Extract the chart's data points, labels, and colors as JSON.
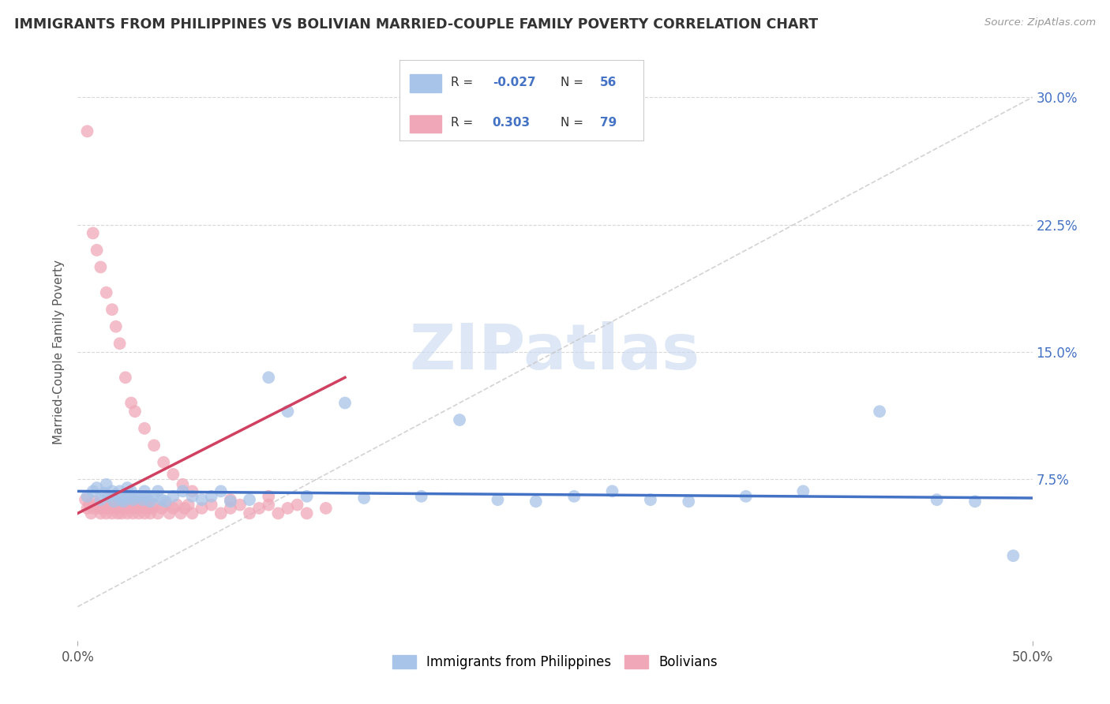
{
  "title": "IMMIGRANTS FROM PHILIPPINES VS BOLIVIAN MARRIED-COUPLE FAMILY POVERTY CORRELATION CHART",
  "source": "Source: ZipAtlas.com",
  "ylabel": "Married-Couple Family Poverty",
  "yticks": [
    "7.5%",
    "15.0%",
    "22.5%",
    "30.0%"
  ],
  "ytick_vals": [
    0.075,
    0.15,
    0.225,
    0.3
  ],
  "xlim": [
    0.0,
    0.5
  ],
  "ylim": [
    -0.02,
    0.32
  ],
  "blue_color": "#a8c4e8",
  "pink_color": "#f0a8b8",
  "trend_blue": "#4472c4",
  "trend_pink": "#d04060",
  "grid_color": "#d8d8d8",
  "watermark_color": "#c8d8f0",
  "watermark": "ZIPatlas",
  "background_color": "#ffffff",
  "phil_x": [
    0.005,
    0.008,
    0.01,
    0.012,
    0.014,
    0.015,
    0.016,
    0.018,
    0.019,
    0.02,
    0.021,
    0.022,
    0.023,
    0.024,
    0.025,
    0.026,
    0.027,
    0.028,
    0.029,
    0.03,
    0.032,
    0.034,
    0.035,
    0.036,
    0.038,
    0.04,
    0.042,
    0.044,
    0.046,
    0.05,
    0.055,
    0.06,
    0.065,
    0.07,
    0.075,
    0.08,
    0.09,
    0.1,
    0.11,
    0.12,
    0.14,
    0.15,
    0.18,
    0.2,
    0.22,
    0.24,
    0.26,
    0.28,
    0.3,
    0.32,
    0.35,
    0.38,
    0.42,
    0.45,
    0.47,
    0.49
  ],
  "phil_y": [
    0.065,
    0.068,
    0.07,
    0.063,
    0.067,
    0.072,
    0.065,
    0.068,
    0.062,
    0.066,
    0.065,
    0.068,
    0.063,
    0.062,
    0.065,
    0.07,
    0.064,
    0.068,
    0.063,
    0.065,
    0.065,
    0.063,
    0.068,
    0.065,
    0.062,
    0.065,
    0.068,
    0.063,
    0.062,
    0.065,
    0.068,
    0.065,
    0.063,
    0.065,
    0.068,
    0.062,
    0.063,
    0.135,
    0.115,
    0.065,
    0.12,
    0.064,
    0.065,
    0.11,
    0.063,
    0.062,
    0.065,
    0.068,
    0.063,
    0.062,
    0.065,
    0.068,
    0.115,
    0.063,
    0.062,
    0.03
  ],
  "boliv_x": [
    0.004,
    0.005,
    0.006,
    0.007,
    0.008,
    0.009,
    0.01,
    0.011,
    0.012,
    0.013,
    0.014,
    0.015,
    0.016,
    0.017,
    0.018,
    0.019,
    0.02,
    0.021,
    0.022,
    0.023,
    0.024,
    0.025,
    0.026,
    0.027,
    0.028,
    0.029,
    0.03,
    0.031,
    0.032,
    0.033,
    0.034,
    0.035,
    0.036,
    0.037,
    0.038,
    0.039,
    0.04,
    0.042,
    0.044,
    0.046,
    0.048,
    0.05,
    0.052,
    0.054,
    0.056,
    0.058,
    0.06,
    0.065,
    0.07,
    0.075,
    0.08,
    0.085,
    0.09,
    0.095,
    0.1,
    0.105,
    0.11,
    0.115,
    0.12,
    0.13,
    0.005,
    0.008,
    0.01,
    0.012,
    0.015,
    0.018,
    0.02,
    0.022,
    0.025,
    0.028,
    0.03,
    0.035,
    0.04,
    0.045,
    0.05,
    0.055,
    0.06,
    0.08,
    0.1
  ],
  "boliv_y": [
    0.063,
    0.058,
    0.06,
    0.055,
    0.058,
    0.062,
    0.06,
    0.058,
    0.055,
    0.058,
    0.06,
    0.055,
    0.058,
    0.062,
    0.055,
    0.058,
    0.06,
    0.055,
    0.058,
    0.055,
    0.058,
    0.06,
    0.055,
    0.058,
    0.062,
    0.055,
    0.058,
    0.06,
    0.055,
    0.058,
    0.062,
    0.055,
    0.058,
    0.06,
    0.055,
    0.058,
    0.06,
    0.055,
    0.058,
    0.06,
    0.055,
    0.058,
    0.06,
    0.055,
    0.058,
    0.06,
    0.055,
    0.058,
    0.06,
    0.055,
    0.058,
    0.06,
    0.055,
    0.058,
    0.06,
    0.055,
    0.058,
    0.06,
    0.055,
    0.058,
    0.28,
    0.22,
    0.21,
    0.2,
    0.185,
    0.175,
    0.165,
    0.155,
    0.135,
    0.12,
    0.115,
    0.105,
    0.095,
    0.085,
    0.078,
    0.072,
    0.068,
    0.063,
    0.065
  ]
}
